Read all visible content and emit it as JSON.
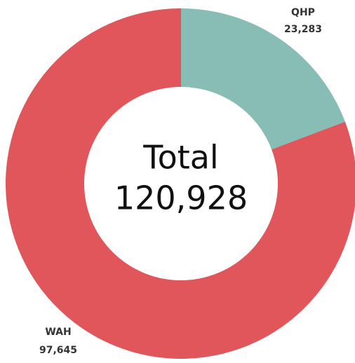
{
  "chart_data": {
    "type": "donut",
    "categories": [
      "QHP",
      "WAH"
    ],
    "values": [
      23283,
      97645
    ],
    "value_labels": [
      "23,283",
      "97,645"
    ],
    "colors": [
      "#88bdb6",
      "#e0565b"
    ],
    "center_title": "Total",
    "total": {
      "value": 120928,
      "label": "120,928"
    }
  }
}
